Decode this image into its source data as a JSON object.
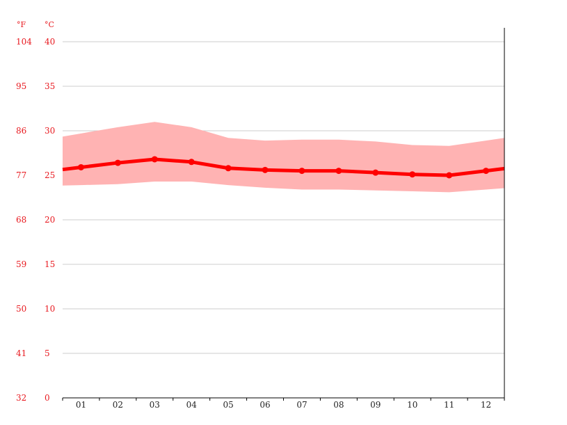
{
  "chart_data": {
    "type": "area",
    "units": {
      "fahrenheit": "°F",
      "celsius": "°C"
    },
    "categories": [
      "01",
      "02",
      "03",
      "04",
      "05",
      "06",
      "07",
      "08",
      "09",
      "10",
      "11",
      "12"
    ],
    "ylim": [
      0,
      40
    ],
    "yticks_celsius": [
      "0",
      "5",
      "10",
      "15",
      "20",
      "25",
      "30",
      "35",
      "40"
    ],
    "yticks_fahrenheit": [
      "32",
      "41",
      "50",
      "59",
      "68",
      "77",
      "86",
      "95",
      "104"
    ],
    "series": [
      {
        "values": [
          25.9,
          26.4,
          26.8,
          26.5,
          25.8,
          25.6,
          25.5,
          25.5,
          25.3,
          25.1,
          25.0,
          25.5
        ]
      },
      {
        "values": [
          29.7,
          30.4,
          31.0,
          30.4,
          29.2,
          28.9,
          29.0,
          29.0,
          28.8,
          28.4,
          28.3,
          28.9
        ]
      },
      {
        "values": [
          23.9,
          24.0,
          24.3,
          24.3,
          23.9,
          23.6,
          23.4,
          23.4,
          23.3,
          23.2,
          23.1,
          23.4
        ]
      }
    ],
    "grid": true,
    "colors": {
      "line": "#ff0000",
      "band": "#ffb3b3",
      "axis_text": "#e8191f",
      "grid": "#cccccc"
    }
  }
}
